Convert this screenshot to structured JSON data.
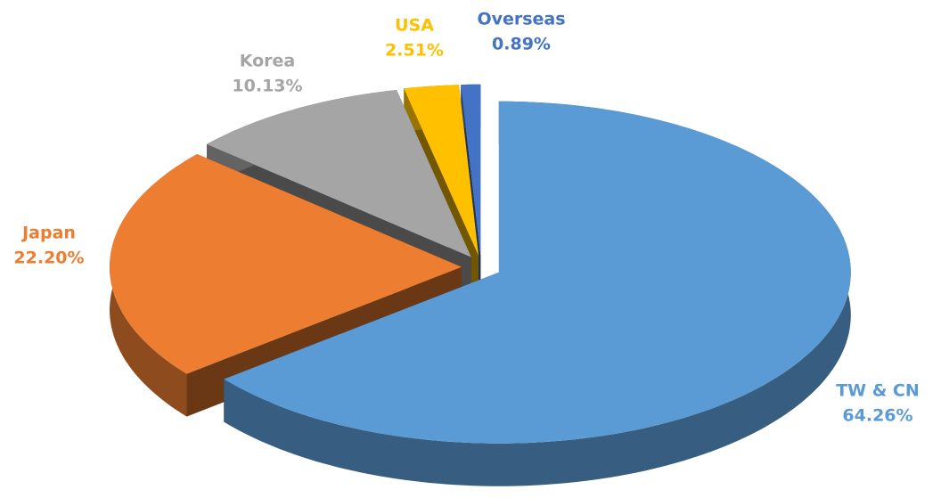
{
  "chart_data": {
    "type": "pie3d",
    "categories": [
      "TW & CN",
      "Japan",
      "Korea",
      "USA",
      "Overseas"
    ],
    "values": [
      64.26,
      22.2,
      10.13,
      2.51,
      0.89
    ],
    "value_labels": [
      "64.26%",
      "22.20%",
      "10.13%",
      "2.51%",
      "0.89%"
    ],
    "colors": [
      "#5b9bd5",
      "#ed7d31",
      "#a5a5a5",
      "#ffc000",
      "#4472c4"
    ]
  }
}
